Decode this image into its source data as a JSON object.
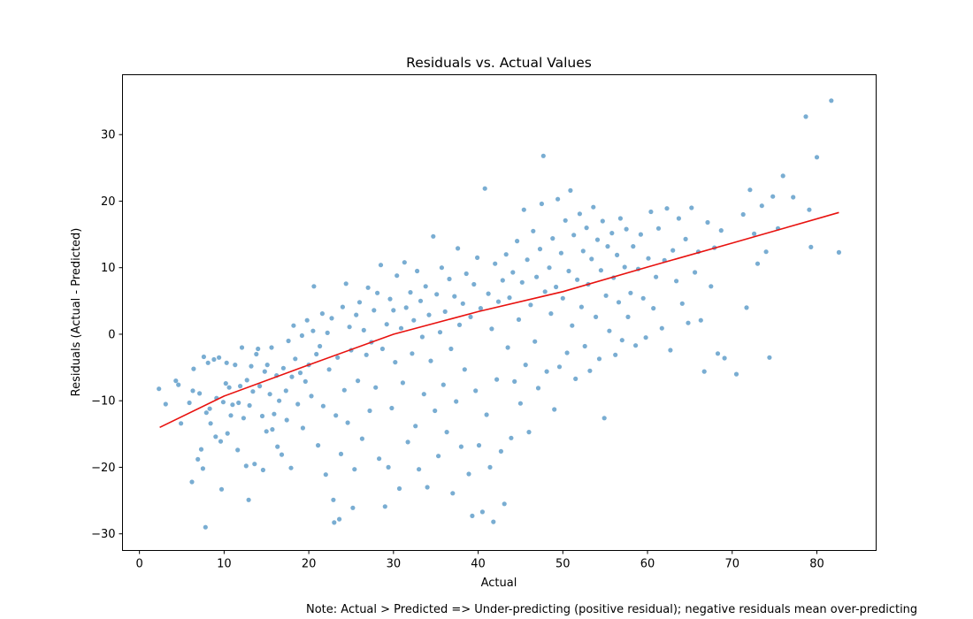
{
  "chart_data": {
    "type": "scatter",
    "title": "Residuals vs. Actual Values",
    "xlabel": "Actual",
    "ylabel": "Residuals (Actual - Predicted)",
    "xlim": [
      -2,
      87
    ],
    "ylim": [
      -32.5,
      39
    ],
    "xticks": [
      0,
      10,
      20,
      30,
      40,
      50,
      60,
      70,
      80
    ],
    "yticks": [
      -30,
      -20,
      -10,
      0,
      10,
      20,
      30
    ],
    "ytick_labels": [
      "−30",
      "−20",
      "−10",
      "0",
      "10",
      "20",
      "30"
    ],
    "grid": false,
    "point_color": "#1f77b4",
    "trend_color": "#e8110e",
    "trend_line": {
      "x": [
        2.4,
        10,
        20,
        30,
        40,
        50,
        60,
        70,
        82.6
      ],
      "y": [
        -14,
        -9.3,
        -4.6,
        0,
        3.4,
        6.4,
        10.1,
        13.7,
        18.3
      ]
    },
    "points": [
      {
        "x": 2.3,
        "y": -8.2
      },
      {
        "x": 3.1,
        "y": -10.5
      },
      {
        "x": 4.3,
        "y": -7.0
      },
      {
        "x": 4.6,
        "y": -7.6
      },
      {
        "x": 4.9,
        "y": -13.4
      },
      {
        "x": 5.9,
        "y": -10.3
      },
      {
        "x": 6.2,
        "y": -22.2
      },
      {
        "x": 6.3,
        "y": -8.5
      },
      {
        "x": 6.4,
        "y": -5.2
      },
      {
        "x": 6.9,
        "y": -18.8
      },
      {
        "x": 7.1,
        "y": -8.9
      },
      {
        "x": 7.3,
        "y": -17.3
      },
      {
        "x": 7.5,
        "y": -20.2
      },
      {
        "x": 7.6,
        "y": -3.4
      },
      {
        "x": 7.8,
        "y": -29.0
      },
      {
        "x": 7.9,
        "y": -11.8
      },
      {
        "x": 8.1,
        "y": -4.3
      },
      {
        "x": 8.3,
        "y": -11.2
      },
      {
        "x": 8.4,
        "y": -13.4
      },
      {
        "x": 8.8,
        "y": -3.8
      },
      {
        "x": 9.0,
        "y": -15.4
      },
      {
        "x": 9.1,
        "y": -9.6
      },
      {
        "x": 9.4,
        "y": -3.5
      },
      {
        "x": 9.6,
        "y": -16.1
      },
      {
        "x": 9.7,
        "y": -23.3
      },
      {
        "x": 9.9,
        "y": -10.2
      },
      {
        "x": 10.2,
        "y": -7.4
      },
      {
        "x": 10.3,
        "y": -4.3
      },
      {
        "x": 10.4,
        "y": -14.9
      },
      {
        "x": 10.6,
        "y": -8.0
      },
      {
        "x": 10.8,
        "y": -12.2
      },
      {
        "x": 11.0,
        "y": -10.6
      },
      {
        "x": 11.3,
        "y": -4.6
      },
      {
        "x": 11.6,
        "y": -17.4
      },
      {
        "x": 11.7,
        "y": -10.3
      },
      {
        "x": 11.9,
        "y": -7.8
      },
      {
        "x": 12.1,
        "y": -2.0
      },
      {
        "x": 12.3,
        "y": -12.6
      },
      {
        "x": 12.6,
        "y": -19.8
      },
      {
        "x": 12.7,
        "y": -6.9
      },
      {
        "x": 12.9,
        "y": -24.9
      },
      {
        "x": 13.0,
        "y": -10.7
      },
      {
        "x": 13.2,
        "y": -4.8
      },
      {
        "x": 13.4,
        "y": -8.6
      },
      {
        "x": 13.6,
        "y": -19.5
      },
      {
        "x": 13.8,
        "y": -3.0
      },
      {
        "x": 14.0,
        "y": -2.2
      },
      {
        "x": 14.2,
        "y": -7.8
      },
      {
        "x": 14.5,
        "y": -12.3
      },
      {
        "x": 14.6,
        "y": -20.4
      },
      {
        "x": 14.8,
        "y": -5.6
      },
      {
        "x": 15.0,
        "y": -14.6
      },
      {
        "x": 15.1,
        "y": -4.6
      },
      {
        "x": 15.4,
        "y": -9.0
      },
      {
        "x": 15.6,
        "y": -2.0
      },
      {
        "x": 15.7,
        "y": -14.3
      },
      {
        "x": 15.9,
        "y": -12.0
      },
      {
        "x": 16.2,
        "y": -6.2
      },
      {
        "x": 16.3,
        "y": -16.9
      },
      {
        "x": 16.5,
        "y": -10.0
      },
      {
        "x": 16.8,
        "y": -18.1
      },
      {
        "x": 17.0,
        "y": -5.1
      },
      {
        "x": 17.3,
        "y": -8.5
      },
      {
        "x": 17.4,
        "y": -12.9
      },
      {
        "x": 17.6,
        "y": -1.0
      },
      {
        "x": 17.9,
        "y": -20.1
      },
      {
        "x": 18.0,
        "y": -6.4
      },
      {
        "x": 18.2,
        "y": 1.3
      },
      {
        "x": 18.4,
        "y": -3.7
      },
      {
        "x": 18.7,
        "y": -10.5
      },
      {
        "x": 19.0,
        "y": -5.8
      },
      {
        "x": 19.2,
        "y": -0.2
      },
      {
        "x": 19.3,
        "y": -14.1
      },
      {
        "x": 19.6,
        "y": -7.1
      },
      {
        "x": 19.8,
        "y": 2.1
      },
      {
        "x": 20.0,
        "y": -4.6
      },
      {
        "x": 20.3,
        "y": -9.3
      },
      {
        "x": 20.5,
        "y": 0.5
      },
      {
        "x": 20.6,
        "y": 7.2
      },
      {
        "x": 20.9,
        "y": -3.0
      },
      {
        "x": 21.1,
        "y": -16.7
      },
      {
        "x": 21.3,
        "y": -1.8
      },
      {
        "x": 21.6,
        "y": 3.1
      },
      {
        "x": 21.7,
        "y": -10.8
      },
      {
        "x": 22.0,
        "y": -21.1
      },
      {
        "x": 22.2,
        "y": 0.2
      },
      {
        "x": 22.4,
        "y": -5.3
      },
      {
        "x": 22.7,
        "y": 2.4
      },
      {
        "x": 22.9,
        "y": -24.9
      },
      {
        "x": 23.0,
        "y": -28.3
      },
      {
        "x": 23.2,
        "y": -12.2
      },
      {
        "x": 23.4,
        "y": -3.5
      },
      {
        "x": 23.6,
        "y": -27.8
      },
      {
        "x": 23.8,
        "y": -18.0
      },
      {
        "x": 24.0,
        "y": 4.1
      },
      {
        "x": 24.2,
        "y": -8.4
      },
      {
        "x": 24.4,
        "y": 7.6
      },
      {
        "x": 24.6,
        "y": -13.3
      },
      {
        "x": 24.8,
        "y": 1.1
      },
      {
        "x": 25.0,
        "y": -2.4
      },
      {
        "x": 25.2,
        "y": -26.1
      },
      {
        "x": 25.4,
        "y": -20.3
      },
      {
        "x": 25.6,
        "y": 2.9
      },
      {
        "x": 25.8,
        "y": -7.0
      },
      {
        "x": 26.0,
        "y": 4.8
      },
      {
        "x": 26.3,
        "y": -15.7
      },
      {
        "x": 26.5,
        "y": 0.6
      },
      {
        "x": 26.8,
        "y": -3.1
      },
      {
        "x": 27.0,
        "y": 7.0
      },
      {
        "x": 27.2,
        "y": -11.5
      },
      {
        "x": 27.4,
        "y": -1.2
      },
      {
        "x": 27.7,
        "y": 3.6
      },
      {
        "x": 27.9,
        "y": -8.0
      },
      {
        "x": 28.1,
        "y": 6.2
      },
      {
        "x": 28.3,
        "y": -18.7
      },
      {
        "x": 28.5,
        "y": 10.4
      },
      {
        "x": 28.7,
        "y": -2.2
      },
      {
        "x": 29.0,
        "y": -25.9
      },
      {
        "x": 29.2,
        "y": 1.5
      },
      {
        "x": 29.4,
        "y": -20.0
      },
      {
        "x": 29.6,
        "y": 5.3
      },
      {
        "x": 29.8,
        "y": -11.1
      },
      {
        "x": 30.0,
        "y": 3.6
      },
      {
        "x": 30.2,
        "y": -4.2
      },
      {
        "x": 30.4,
        "y": 8.8
      },
      {
        "x": 30.7,
        "y": -23.2
      },
      {
        "x": 30.9,
        "y": 0.9
      },
      {
        "x": 31.1,
        "y": -7.3
      },
      {
        "x": 31.3,
        "y": 10.8
      },
      {
        "x": 31.5,
        "y": 4.0
      },
      {
        "x": 31.7,
        "y": -16.2
      },
      {
        "x": 32.0,
        "y": 6.3
      },
      {
        "x": 32.2,
        "y": -2.9
      },
      {
        "x": 32.4,
        "y": 2.1
      },
      {
        "x": 32.6,
        "y": -13.8
      },
      {
        "x": 32.8,
        "y": 9.5
      },
      {
        "x": 33.0,
        "y": -20.3
      },
      {
        "x": 33.2,
        "y": 5.0
      },
      {
        "x": 33.4,
        "y": -0.4
      },
      {
        "x": 33.6,
        "y": -9.0
      },
      {
        "x": 33.8,
        "y": 7.2
      },
      {
        "x": 34.0,
        "y": -23.0
      },
      {
        "x": 34.2,
        "y": 2.9
      },
      {
        "x": 34.4,
        "y": -4.0
      },
      {
        "x": 34.7,
        "y": 14.7
      },
      {
        "x": 34.9,
        "y": -11.5
      },
      {
        "x": 35.1,
        "y": 6.0
      },
      {
        "x": 35.3,
        "y": -18.3
      },
      {
        "x": 35.5,
        "y": 0.3
      },
      {
        "x": 35.7,
        "y": 10.0
      },
      {
        "x": 35.9,
        "y": -7.6
      },
      {
        "x": 36.1,
        "y": 3.4
      },
      {
        "x": 36.3,
        "y": -14.7
      },
      {
        "x": 36.6,
        "y": 8.3
      },
      {
        "x": 36.8,
        "y": -2.2
      },
      {
        "x": 37.0,
        "y": -23.9
      },
      {
        "x": 37.2,
        "y": 5.7
      },
      {
        "x": 37.4,
        "y": -10.1
      },
      {
        "x": 37.6,
        "y": 12.9
      },
      {
        "x": 37.8,
        "y": 1.4
      },
      {
        "x": 38.0,
        "y": -16.9
      },
      {
        "x": 38.2,
        "y": 4.6
      },
      {
        "x": 38.4,
        "y": -5.3
      },
      {
        "x": 38.6,
        "y": 9.1
      },
      {
        "x": 38.9,
        "y": -21.0
      },
      {
        "x": 39.1,
        "y": 2.6
      },
      {
        "x": 39.3,
        "y": -27.3
      },
      {
        "x": 39.5,
        "y": 7.5
      },
      {
        "x": 39.7,
        "y": -8.5
      },
      {
        "x": 39.9,
        "y": 11.5
      },
      {
        "x": 40.1,
        "y": -16.7
      },
      {
        "x": 40.3,
        "y": 3.9
      },
      {
        "x": 40.5,
        "y": -26.7
      },
      {
        "x": 40.8,
        "y": 21.9
      },
      {
        "x": 41.0,
        "y": -12.1
      },
      {
        "x": 41.2,
        "y": 6.1
      },
      {
        "x": 41.4,
        "y": -20.0
      },
      {
        "x": 41.6,
        "y": 0.8
      },
      {
        "x": 41.8,
        "y": -28.2
      },
      {
        "x": 42.0,
        "y": 10.6
      },
      {
        "x": 42.2,
        "y": -6.8
      },
      {
        "x": 42.4,
        "y": 4.9
      },
      {
        "x": 42.7,
        "y": -17.6
      },
      {
        "x": 42.9,
        "y": 8.1
      },
      {
        "x": 43.1,
        "y": -25.5
      },
      {
        "x": 43.3,
        "y": 12.0
      },
      {
        "x": 43.5,
        "y": -2.0
      },
      {
        "x": 43.7,
        "y": 5.5
      },
      {
        "x": 43.9,
        "y": -15.6
      },
      {
        "x": 44.1,
        "y": 9.3
      },
      {
        "x": 44.3,
        "y": -7.1
      },
      {
        "x": 44.6,
        "y": 14.0
      },
      {
        "x": 44.8,
        "y": 2.2
      },
      {
        "x": 45.0,
        "y": -10.4
      },
      {
        "x": 45.2,
        "y": 7.8
      },
      {
        "x": 45.4,
        "y": 18.7
      },
      {
        "x": 45.6,
        "y": -4.6
      },
      {
        "x": 45.8,
        "y": 11.2
      },
      {
        "x": 46.0,
        "y": -14.7
      },
      {
        "x": 46.2,
        "y": 4.4
      },
      {
        "x": 46.5,
        "y": 15.5
      },
      {
        "x": 46.7,
        "y": -1.1
      },
      {
        "x": 46.9,
        "y": 8.6
      },
      {
        "x": 47.1,
        "y": -8.1
      },
      {
        "x": 47.3,
        "y": 12.8
      },
      {
        "x": 47.5,
        "y": 19.6
      },
      {
        "x": 47.7,
        "y": 26.8
      },
      {
        "x": 47.9,
        "y": 6.4
      },
      {
        "x": 48.1,
        "y": -5.6
      },
      {
        "x": 48.4,
        "y": 10.0
      },
      {
        "x": 48.6,
        "y": 3.1
      },
      {
        "x": 48.8,
        "y": 14.4
      },
      {
        "x": 49.0,
        "y": -11.3
      },
      {
        "x": 49.2,
        "y": 7.1
      },
      {
        "x": 49.4,
        "y": 20.3
      },
      {
        "x": 49.6,
        "y": -4.9
      },
      {
        "x": 49.8,
        "y": 12.2
      },
      {
        "x": 50.0,
        "y": 5.4
      },
      {
        "x": 50.3,
        "y": 17.1
      },
      {
        "x": 50.5,
        "y": -2.8
      },
      {
        "x": 50.7,
        "y": 9.5
      },
      {
        "x": 50.9,
        "y": 21.6
      },
      {
        "x": 51.1,
        "y": 1.3
      },
      {
        "x": 51.3,
        "y": 14.9
      },
      {
        "x": 51.5,
        "y": -6.7
      },
      {
        "x": 51.7,
        "y": 8.2
      },
      {
        "x": 52.0,
        "y": 18.1
      },
      {
        "x": 52.2,
        "y": 4.1
      },
      {
        "x": 52.4,
        "y": 12.5
      },
      {
        "x": 52.6,
        "y": -1.8
      },
      {
        "x": 52.8,
        "y": 16.0
      },
      {
        "x": 53.0,
        "y": 7.5
      },
      {
        "x": 53.2,
        "y": -5.5
      },
      {
        "x": 53.4,
        "y": 11.3
      },
      {
        "x": 53.6,
        "y": 19.1
      },
      {
        "x": 53.9,
        "y": 2.6
      },
      {
        "x": 54.1,
        "y": 14.2
      },
      {
        "x": 54.3,
        "y": -3.7
      },
      {
        "x": 54.5,
        "y": 9.6
      },
      {
        "x": 54.7,
        "y": 17.0
      },
      {
        "x": 54.9,
        "y": -12.6
      },
      {
        "x": 55.1,
        "y": 5.8
      },
      {
        "x": 55.3,
        "y": 13.2
      },
      {
        "x": 55.5,
        "y": 0.5
      },
      {
        "x": 55.8,
        "y": 15.2
      },
      {
        "x": 56.0,
        "y": 8.5
      },
      {
        "x": 56.2,
        "y": -3.1
      },
      {
        "x": 56.4,
        "y": 11.9
      },
      {
        "x": 56.6,
        "y": 4.8
      },
      {
        "x": 56.8,
        "y": 17.4
      },
      {
        "x": 57.0,
        "y": -0.9
      },
      {
        "x": 57.3,
        "y": 10.1
      },
      {
        "x": 57.5,
        "y": 15.8
      },
      {
        "x": 57.7,
        "y": 2.6
      },
      {
        "x": 58.0,
        "y": 6.2
      },
      {
        "x": 58.3,
        "y": 13.2
      },
      {
        "x": 58.6,
        "y": -1.7
      },
      {
        "x": 58.9,
        "y": 9.8
      },
      {
        "x": 59.2,
        "y": 15.0
      },
      {
        "x": 59.5,
        "y": 5.4
      },
      {
        "x": 59.8,
        "y": -0.5
      },
      {
        "x": 60.1,
        "y": 11.4
      },
      {
        "x": 60.4,
        "y": 18.4
      },
      {
        "x": 60.7,
        "y": 3.9
      },
      {
        "x": 61.0,
        "y": 8.6
      },
      {
        "x": 61.3,
        "y": 15.9
      },
      {
        "x": 61.7,
        "y": 0.9
      },
      {
        "x": 62.0,
        "y": 11.1
      },
      {
        "x": 62.3,
        "y": 18.9
      },
      {
        "x": 62.7,
        "y": -2.4
      },
      {
        "x": 63.0,
        "y": 12.6
      },
      {
        "x": 63.4,
        "y": 8.0
      },
      {
        "x": 63.7,
        "y": 17.4
      },
      {
        "x": 64.1,
        "y": 4.6
      },
      {
        "x": 64.5,
        "y": 14.3
      },
      {
        "x": 64.8,
        "y": 1.7
      },
      {
        "x": 65.2,
        "y": 19.0
      },
      {
        "x": 65.6,
        "y": 9.3
      },
      {
        "x": 66.0,
        "y": 12.4
      },
      {
        "x": 66.3,
        "y": 2.1
      },
      {
        "x": 66.7,
        "y": -5.6
      },
      {
        "x": 67.1,
        "y": 16.8
      },
      {
        "x": 67.5,
        "y": 7.2
      },
      {
        "x": 67.9,
        "y": 13.0
      },
      {
        "x": 68.3,
        "y": -2.9
      },
      {
        "x": 68.7,
        "y": 15.6
      },
      {
        "x": 69.1,
        "y": -3.6
      },
      {
        "x": 70.5,
        "y": -6.0
      },
      {
        "x": 71.3,
        "y": 18.0
      },
      {
        "x": 71.7,
        "y": 4.0
      },
      {
        "x": 72.1,
        "y": 21.7
      },
      {
        "x": 72.6,
        "y": 15.1
      },
      {
        "x": 73.0,
        "y": 10.6
      },
      {
        "x": 73.5,
        "y": 19.3
      },
      {
        "x": 74.0,
        "y": 12.4
      },
      {
        "x": 74.4,
        "y": -3.5
      },
      {
        "x": 74.8,
        "y": 20.7
      },
      {
        "x": 75.4,
        "y": 15.9
      },
      {
        "x": 76.0,
        "y": 23.8
      },
      {
        "x": 77.2,
        "y": 20.6
      },
      {
        "x": 78.7,
        "y": 32.7
      },
      {
        "x": 79.1,
        "y": 18.7
      },
      {
        "x": 79.3,
        "y": 13.1
      },
      {
        "x": 80.0,
        "y": 26.6
      },
      {
        "x": 81.7,
        "y": 35.1
      },
      {
        "x": 82.6,
        "y": 12.3
      }
    ]
  },
  "note": "Note: Actual > Predicted => Under-predicting (positive residual); negative residuals mean over-predicting"
}
